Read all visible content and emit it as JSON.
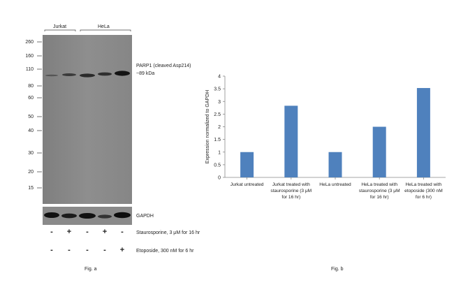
{
  "fig_a": {
    "caption": "Fig. a",
    "sample_groups": [
      {
        "label": "Jurkat"
      },
      {
        "label": "HeLa"
      }
    ],
    "mw_markers": [
      "260",
      "160",
      "110",
      "80",
      "60",
      "50",
      "40",
      "30",
      "20",
      "15"
    ],
    "band_labels": {
      "target": "PARP1 (cleaved Asp214)",
      "size": "~89 kDa",
      "loading": "GAPDH"
    },
    "treatments": [
      {
        "label": "Staurosporine, 3 μM for 16 hr",
        "signs": [
          "-",
          "+",
          "-",
          "+",
          "-"
        ]
      },
      {
        "label": "Etoposide, 300 nM for 6 hr",
        "signs": [
          "-",
          "-",
          "-",
          "-",
          "+"
        ]
      }
    ],
    "colors": {
      "blot": "#8d8d8d",
      "band": "#1a1a1a"
    }
  },
  "chart_data": {
    "type": "bar",
    "caption": "Fig. b",
    "ylabel": "Expression normalized to GAPDH",
    "ylim": [
      0,
      4
    ],
    "yticks": [
      "0",
      "0.5",
      "1",
      "1.5",
      "2",
      "2.5",
      "3",
      "3.5",
      "4"
    ],
    "categories": [
      [
        "Jurkat untreated"
      ],
      [
        "Jurkat treated with",
        "staurosporine (3 μM",
        "for 16 hr)"
      ],
      [
        "HeLa untreated"
      ],
      [
        "HeLa treated with",
        "staurosporine (3 μM",
        "for 16 hr)"
      ],
      [
        "HeLa treated with",
        "etoposide (300 nM",
        "for 6 hr)"
      ]
    ],
    "values": [
      1.0,
      2.83,
      1.0,
      2.0,
      3.53
    ],
    "grid": false,
    "bar_color": "#4f81bd"
  }
}
